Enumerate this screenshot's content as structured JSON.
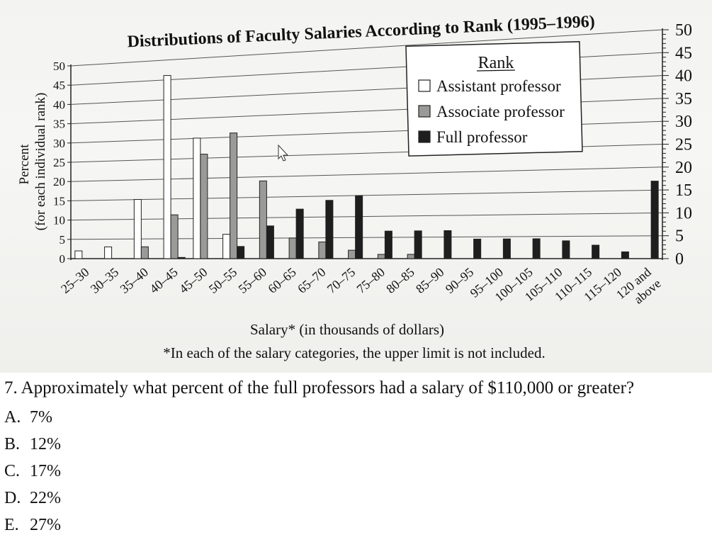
{
  "chart_data": {
    "type": "bar",
    "title": "Distributions of Faculty Salaries According to Rank (1995–1996)",
    "xlabel": "Salary* (in thousands of dollars)",
    "ylabel": "Percent",
    "ylabel_sub": "(for each individual rank)",
    "footnote": "*In each of the salary categories, the upper limit is not included.",
    "legend_title": "Rank",
    "legend_position": "top-right",
    "grid": true,
    "ylim": [
      0,
      50
    ],
    "left_ticks": [
      "0",
      "5",
      "10",
      "15",
      "20",
      "25",
      "30",
      "35",
      "40",
      "45",
      "50"
    ],
    "right_ticks": [
      "0",
      "5",
      "10",
      "15",
      "20",
      "25",
      "30",
      "35",
      "40",
      "45",
      "50"
    ],
    "categories": [
      "25–30",
      "30–35",
      "35–40",
      "40–45",
      "45–50",
      "50–55",
      "55–60",
      "60–65",
      "65–70",
      "70–75",
      "75–80",
      "80–85",
      "85–90",
      "90–95",
      "95–100",
      "100–105",
      "105–110",
      "110–115",
      "115–120",
      "120 and above"
    ],
    "category_labels": [
      [
        "25–30"
      ],
      [
        "30–35"
      ],
      [
        "35–40"
      ],
      [
        "40–45"
      ],
      [
        "45–50"
      ],
      [
        "50–55"
      ],
      [
        "55–60"
      ],
      [
        "60–65"
      ],
      [
        "65–70"
      ],
      [
        "70–75"
      ],
      [
        "75–80"
      ],
      [
        "80–85"
      ],
      [
        "85–90"
      ],
      [
        "90–95"
      ],
      [
        "95–100"
      ],
      [
        "100–105"
      ],
      [
        "105–110"
      ],
      [
        "110–115"
      ],
      [
        "115–120"
      ],
      [
        "120 and",
        "above"
      ]
    ],
    "series": [
      {
        "name": "Assistant professor",
        "color": "#ffffff",
        "values": [
          2,
          3,
          15,
          46,
          30,
          6,
          0,
          0,
          0,
          0,
          0,
          0,
          0,
          0,
          0,
          0,
          0,
          0,
          0,
          0
        ]
      },
      {
        "name": "Associate professor",
        "color": "#9a9a98",
        "values": [
          0,
          0,
          3,
          11,
          26,
          31,
          19,
          5,
          4,
          2,
          1,
          1,
          0,
          0,
          0,
          0,
          0,
          0,
          0,
          0
        ]
      },
      {
        "name": "Full professor",
        "color": "#1e1e1e",
        "values": [
          0,
          0,
          0,
          0.3,
          0,
          3,
          8,
          12,
          14,
          15,
          6.5,
          6.5,
          6.5,
          4.5,
          4.5,
          4.5,
          4,
          3,
          1.5,
          17
        ]
      }
    ]
  },
  "question": {
    "text": "7. Approximately what percent of the full professors had a salary of $110,000 or greater?",
    "choices": [
      {
        "letter": "A.",
        "text": "7%"
      },
      {
        "letter": "B.",
        "text": "12%"
      },
      {
        "letter": "C.",
        "text": "17%"
      },
      {
        "letter": "D.",
        "text": "22%"
      },
      {
        "letter": "E.",
        "text": "27%"
      }
    ]
  }
}
